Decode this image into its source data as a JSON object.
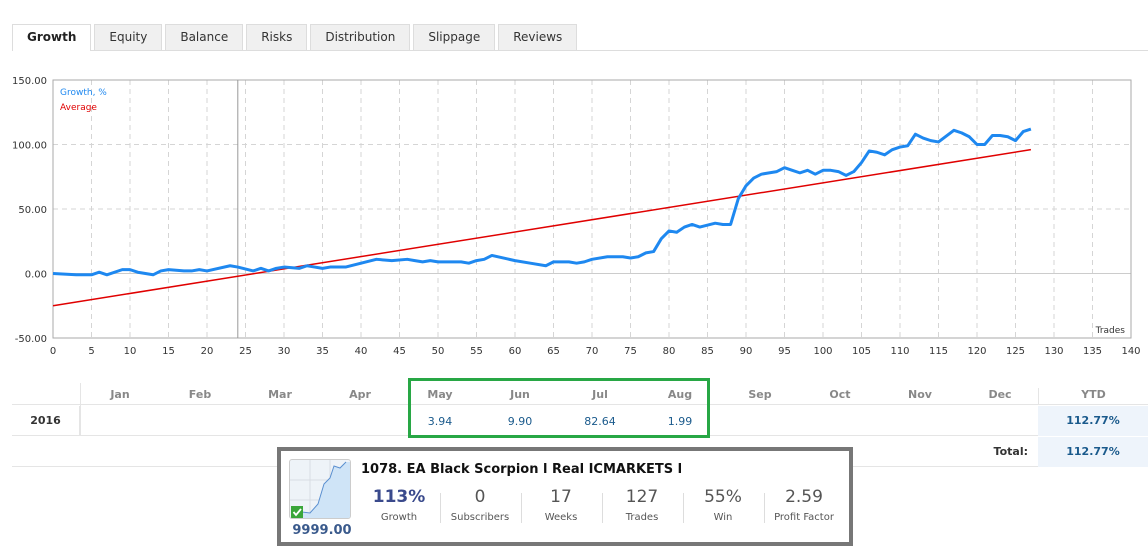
{
  "tabs": [
    "Growth",
    "Equity",
    "Balance",
    "Risks",
    "Distribution",
    "Slippage",
    "Reviews"
  ],
  "chart_data": {
    "type": "line",
    "legend": [
      "Growth, %",
      "Average"
    ],
    "xlabel": "Trades",
    "xlim": [
      0,
      140
    ],
    "ylim": [
      -50,
      150
    ],
    "xticks": [
      0,
      5,
      10,
      15,
      20,
      25,
      30,
      35,
      40,
      45,
      50,
      55,
      60,
      65,
      70,
      75,
      80,
      85,
      90,
      95,
      100,
      105,
      110,
      115,
      120,
      125,
      130,
      135,
      140
    ],
    "yticks": [
      "150.00",
      "100.00",
      "50.00",
      "0.00",
      "-50.00"
    ],
    "marker_x": 24,
    "colors": {
      "growth": "#1e88f0",
      "average": "#e00000"
    },
    "series": [
      {
        "name": "Growth, %",
        "points": [
          [
            0,
            0
          ],
          [
            3,
            -1
          ],
          [
            5,
            -1
          ],
          [
            6,
            1
          ],
          [
            7,
            -1
          ],
          [
            9,
            3
          ],
          [
            10,
            3
          ],
          [
            11,
            1
          ],
          [
            13,
            -1
          ],
          [
            14,
            2
          ],
          [
            15,
            3
          ],
          [
            17,
            2
          ],
          [
            18,
            2
          ],
          [
            19,
            3
          ],
          [
            20,
            2
          ],
          [
            23,
            6
          ],
          [
            24,
            5
          ],
          [
            26,
            2
          ],
          [
            27,
            4
          ],
          [
            28,
            2
          ],
          [
            29,
            4
          ],
          [
            30,
            5
          ],
          [
            32,
            4
          ],
          [
            33,
            6
          ],
          [
            34,
            5
          ],
          [
            35,
            4
          ],
          [
            36,
            5
          ],
          [
            38,
            5
          ],
          [
            40,
            8
          ],
          [
            42,
            11
          ],
          [
            44,
            10
          ],
          [
            46,
            11
          ],
          [
            47,
            10
          ],
          [
            48,
            9
          ],
          [
            49,
            10
          ],
          [
            50,
            9
          ],
          [
            53,
            9
          ],
          [
            54,
            8
          ],
          [
            55,
            10
          ],
          [
            56,
            11
          ],
          [
            57,
            14
          ],
          [
            60,
            10
          ],
          [
            62,
            8
          ],
          [
            64,
            6
          ],
          [
            65,
            9
          ],
          [
            67,
            9
          ],
          [
            68,
            8
          ],
          [
            69,
            9
          ],
          [
            70,
            11
          ],
          [
            72,
            13
          ],
          [
            74,
            13
          ],
          [
            75,
            12
          ],
          [
            76,
            13
          ],
          [
            77,
            16
          ],
          [
            78,
            17
          ],
          [
            79,
            27
          ],
          [
            80,
            33
          ],
          [
            81,
            32
          ],
          [
            82,
            36
          ],
          [
            83,
            38
          ],
          [
            84,
            36
          ],
          [
            86,
            39
          ],
          [
            87,
            38
          ],
          [
            88,
            38
          ],
          [
            89,
            58
          ],
          [
            90,
            68
          ],
          [
            91,
            74
          ],
          [
            92,
            77
          ],
          [
            93,
            78
          ],
          [
            94,
            79
          ],
          [
            95,
            82
          ],
          [
            96,
            80
          ],
          [
            97,
            78
          ],
          [
            98,
            80
          ],
          [
            99,
            77
          ],
          [
            100,
            80
          ],
          [
            101,
            80
          ],
          [
            102,
            79
          ],
          [
            103,
            76
          ],
          [
            104,
            79
          ],
          [
            105,
            86
          ],
          [
            106,
            95
          ],
          [
            107,
            94
          ],
          [
            108,
            92
          ],
          [
            109,
            96
          ],
          [
            110,
            98
          ],
          [
            111,
            99
          ],
          [
            112,
            108
          ],
          [
            113,
            105
          ],
          [
            114,
            103
          ],
          [
            115,
            102
          ],
          [
            117,
            111
          ],
          [
            118,
            109
          ],
          [
            119,
            106
          ],
          [
            120,
            100
          ],
          [
            121,
            100
          ],
          [
            122,
            107
          ],
          [
            123,
            107
          ],
          [
            124,
            106
          ],
          [
            125,
            103
          ],
          [
            126,
            110
          ],
          [
            127,
            112
          ]
        ]
      },
      {
        "name": "Average",
        "points": [
          [
            0,
            -25
          ],
          [
            127,
            96
          ]
        ]
      }
    ]
  },
  "table": {
    "months": [
      "Jan",
      "Feb",
      "Mar",
      "Apr",
      "May",
      "Jun",
      "Jul",
      "Aug",
      "Sep",
      "Oct",
      "Nov",
      "Dec"
    ],
    "ytd_label": "YTD",
    "year": "2016",
    "values": [
      "",
      "",
      "",
      "",
      "3.94",
      "9.90",
      "82.64",
      "1.99",
      "",
      "",
      "",
      ""
    ],
    "ytd": "112.77%",
    "total_label": "Total:",
    "total": "112.77%"
  },
  "card": {
    "title": "1078. EA Black Scorpion l Real ICMARKETS l",
    "balance": "9999.00",
    "stats": [
      {
        "value": "113%",
        "label": "Growth"
      },
      {
        "value": "0",
        "label": "Subscribers"
      },
      {
        "value": "17",
        "label": "Weeks"
      },
      {
        "value": "127",
        "label": "Trades"
      },
      {
        "value": "55%",
        "label": "Win"
      },
      {
        "value": "2.59",
        "label": "Profit Factor"
      }
    ]
  }
}
